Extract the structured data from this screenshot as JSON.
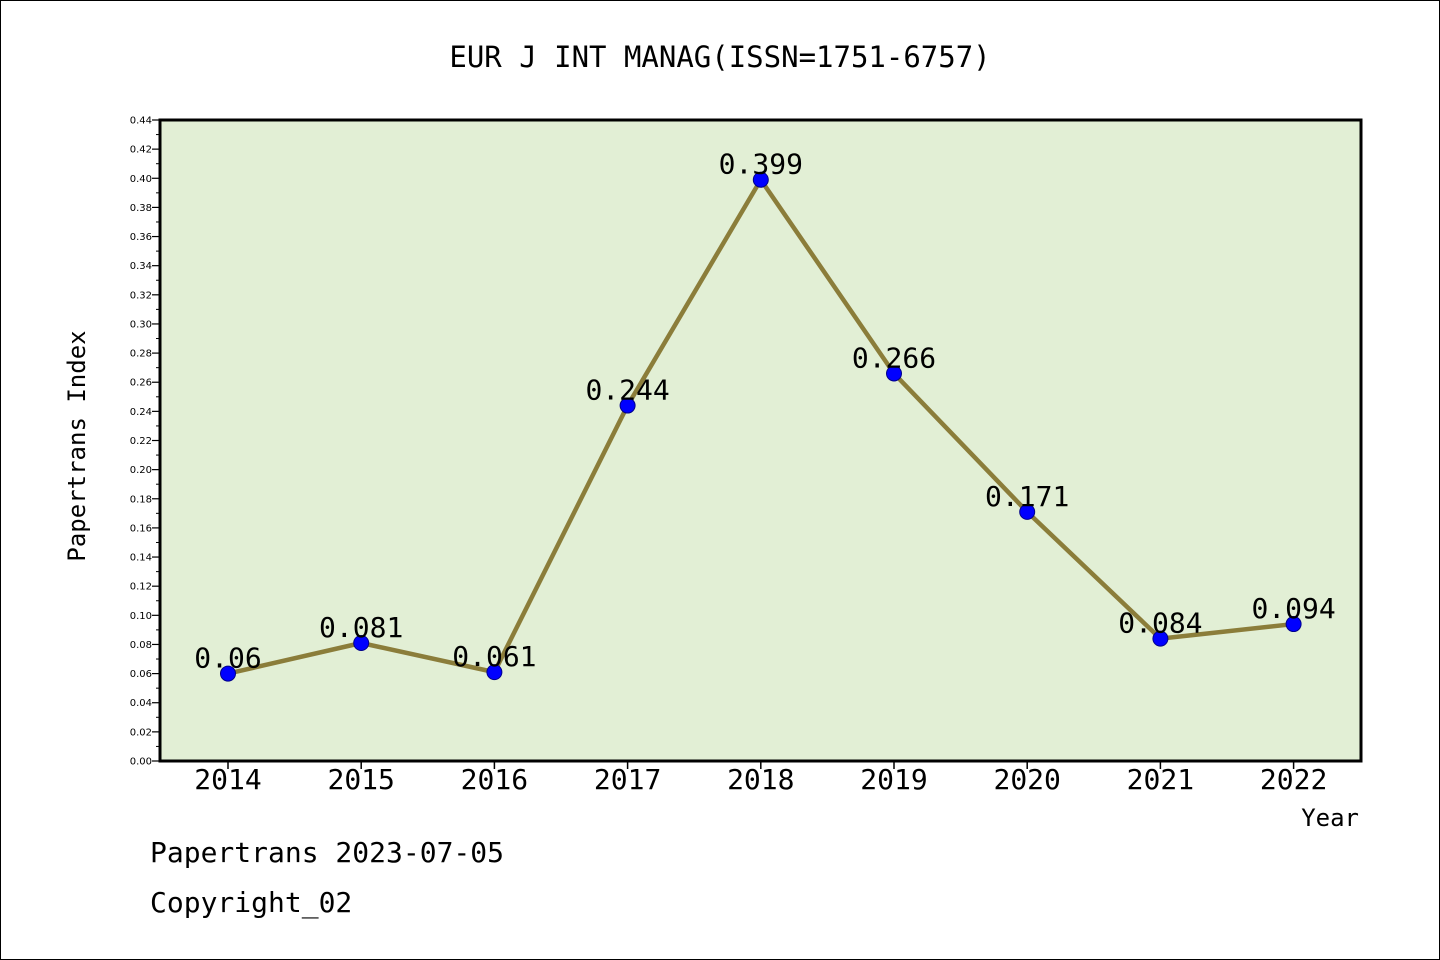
{
  "chart_data": {
    "type": "line",
    "title": "EUR J INT MANAG(ISSN=1751-6757)",
    "xlabel": "Year",
    "ylabel": "Papertrans Index",
    "categories": [
      "2014",
      "2015",
      "2016",
      "2017",
      "2018",
      "2019",
      "2020",
      "2021",
      "2022"
    ],
    "series": [
      {
        "values": [
          0.06,
          0.081,
          0.061,
          0.244,
          0.399,
          0.266,
          0.171,
          0.084,
          0.094
        ],
        "labels": [
          "0.06",
          "0.081",
          "0.061",
          "0.244",
          "0.399",
          "0.266",
          "0.171",
          "0.084",
          "0.094"
        ]
      }
    ],
    "ylim": [
      0,
      0.44
    ],
    "ytick_step": 0.02,
    "grid": false,
    "colors": {
      "plot_background": "#e2efd5",
      "line": "#8b7d3a",
      "marker": "#0000ff"
    }
  },
  "footer": {
    "line1": "Papertrans 2023-07-05",
    "line2": "Copyright_02"
  }
}
